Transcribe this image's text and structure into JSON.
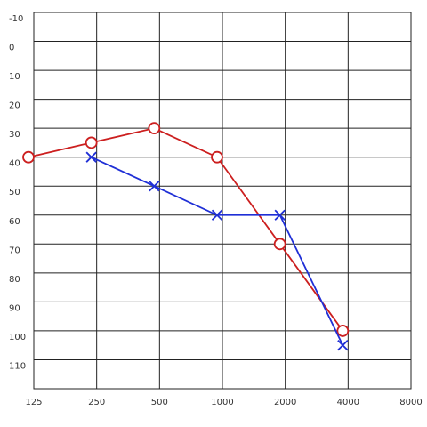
{
  "chart_data": {
    "type": "line",
    "categories": [
      "125",
      "250",
      "500",
      "1000",
      "2000",
      "4000",
      "8000"
    ],
    "series": [
      {
        "color": "#cc1f1f",
        "marker": "circle",
        "values": [
          40,
          35,
          30,
          40,
          70,
          100,
          null
        ]
      },
      {
        "color": "#1f2fd6",
        "marker": "x",
        "values": [
          null,
          40,
          50,
          60,
          60,
          105,
          null
        ]
      }
    ],
    "ylim": [
      -10,
      120
    ],
    "y_inverted": true,
    "yticks": [
      -10,
      0,
      10,
      20,
      30,
      40,
      50,
      60,
      70,
      80,
      90,
      100,
      110
    ],
    "grid": true
  }
}
